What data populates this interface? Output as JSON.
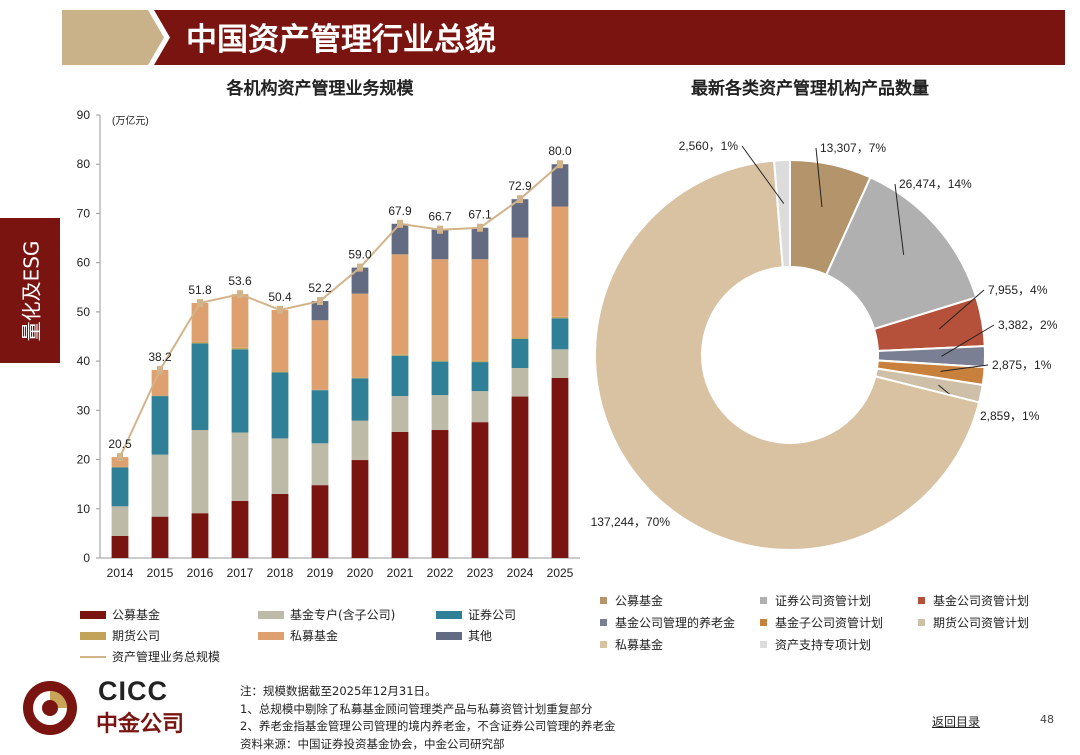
{
  "header": {
    "title": "中国资产管理行业总貌"
  },
  "side_tab": {
    "label": "量化及ESG"
  },
  "colors": {
    "brand": "#7a1410",
    "header_tan": "#c9b28a"
  },
  "chart_data": [
    {
      "type": "bar",
      "stacked": true,
      "title": "各机构资产管理业务规模",
      "unit_label": "(万亿元)",
      "categories": [
        "2014",
        "2015",
        "2016",
        "2017",
        "2018",
        "2019",
        "2020",
        "2021",
        "2022",
        "2023",
        "2024",
        "2025"
      ],
      "ylim": [
        0,
        90
      ],
      "yticks": [
        0,
        10,
        20,
        30,
        40,
        50,
        60,
        70,
        80,
        90
      ],
      "series": [
        {
          "name": "公募基金",
          "color": "#7a1410",
          "values": [
            4.5,
            8.4,
            9.1,
            11.6,
            13.0,
            14.8,
            19.9,
            25.6,
            26.0,
            27.6,
            32.8,
            36.6
          ]
        },
        {
          "name": "基金专户(含子公司)",
          "color": "#bdbaa7",
          "values": [
            6.0,
            12.6,
            16.9,
            13.9,
            11.3,
            8.5,
            8.0,
            7.3,
            7.1,
            6.3,
            5.8,
            5.8
          ]
        },
        {
          "name": "证券公司",
          "color": "#2f7f96",
          "values": [
            7.9,
            11.9,
            17.6,
            16.9,
            13.4,
            10.8,
            8.6,
            8.2,
            6.8,
            5.9,
            5.9,
            6.3
          ]
        },
        {
          "name": "期货公司",
          "color": "#c2a35a",
          "values": [
            0.1,
            0.1,
            0.3,
            0.3,
            0.2,
            0.1,
            0.2,
            0.3,
            0.3,
            0.3,
            0.3,
            0.3
          ]
        },
        {
          "name": "私募基金",
          "color": "#dea06f",
          "values": [
            2.0,
            5.2,
            7.9,
            10.9,
            12.5,
            14.1,
            17.0,
            20.3,
            20.5,
            20.6,
            20.3,
            22.4
          ]
        },
        {
          "name": "其他",
          "color": "#636b83",
          "values": [
            0,
            0,
            0,
            0,
            0,
            3.9,
            5.3,
            6.2,
            6.0,
            6.4,
            7.8,
            8.6
          ]
        }
      ],
      "total_series": {
        "name": "资产管理业务总规模",
        "color": "#d3b48a",
        "values": [
          20.5,
          38.2,
          51.8,
          53.6,
          50.4,
          52.2,
          59.0,
          67.9,
          66.7,
          67.1,
          72.9,
          80.0
        ]
      },
      "total_labels": [
        "20.5",
        "38.2",
        "51.8",
        "53.6",
        "50.4",
        "52.2",
        "59.0",
        "67.9",
        "66.7",
        "67.1",
        "72.9",
        "80.0"
      ]
    },
    {
      "type": "pie",
      "donut": true,
      "title": "最新各类资产管理机构产品数量",
      "slices": [
        {
          "name": "公募基金",
          "value": 13307,
          "label": "13,307，7%",
          "color": "#b3946b"
        },
        {
          "name": "证券公司资管计划",
          "value": 26474,
          "label": "26,474，14%",
          "color": "#b0b0b0"
        },
        {
          "name": "基金公司资管计划",
          "value": 7955,
          "label": "7,955，4%",
          "color": "#b5513a"
        },
        {
          "name": "基金公司管理的养老金",
          "value": 3382,
          "label": "3,382，2%",
          "color": "#7a7f93"
        },
        {
          "name": "基金子公司资管计划",
          "value": 2875,
          "label": "2,875，1%",
          "color": "#c8803d"
        },
        {
          "name": "期货公司资管计划",
          "value": 2859,
          "label": "2,859，1%",
          "color": "#cdbfa8"
        },
        {
          "name": "私募基金",
          "value": 137244,
          "label": "137,244，70%",
          "color": "#d8c2a2"
        },
        {
          "name": "资产支持专项计划",
          "value": 2560,
          "label": "2,560，1%",
          "color": "#dcdcdc"
        }
      ]
    }
  ],
  "notes": [
    "注：规模数据截至2025年12月31日。",
    "1、总规模中剔除了私募基金顾问管理类产品与私募资管计划重复部分",
    "2、养老金指基金管理公司管理的境内养老金，不含证券公司管理的养老金",
    "资料来源：中国证券投资基金协会，中金公司研究部"
  ],
  "logo": {
    "en": "CICC",
    "cn": "中金公司"
  },
  "footer": {
    "back_link": "返回目录",
    "page_number": "48"
  }
}
